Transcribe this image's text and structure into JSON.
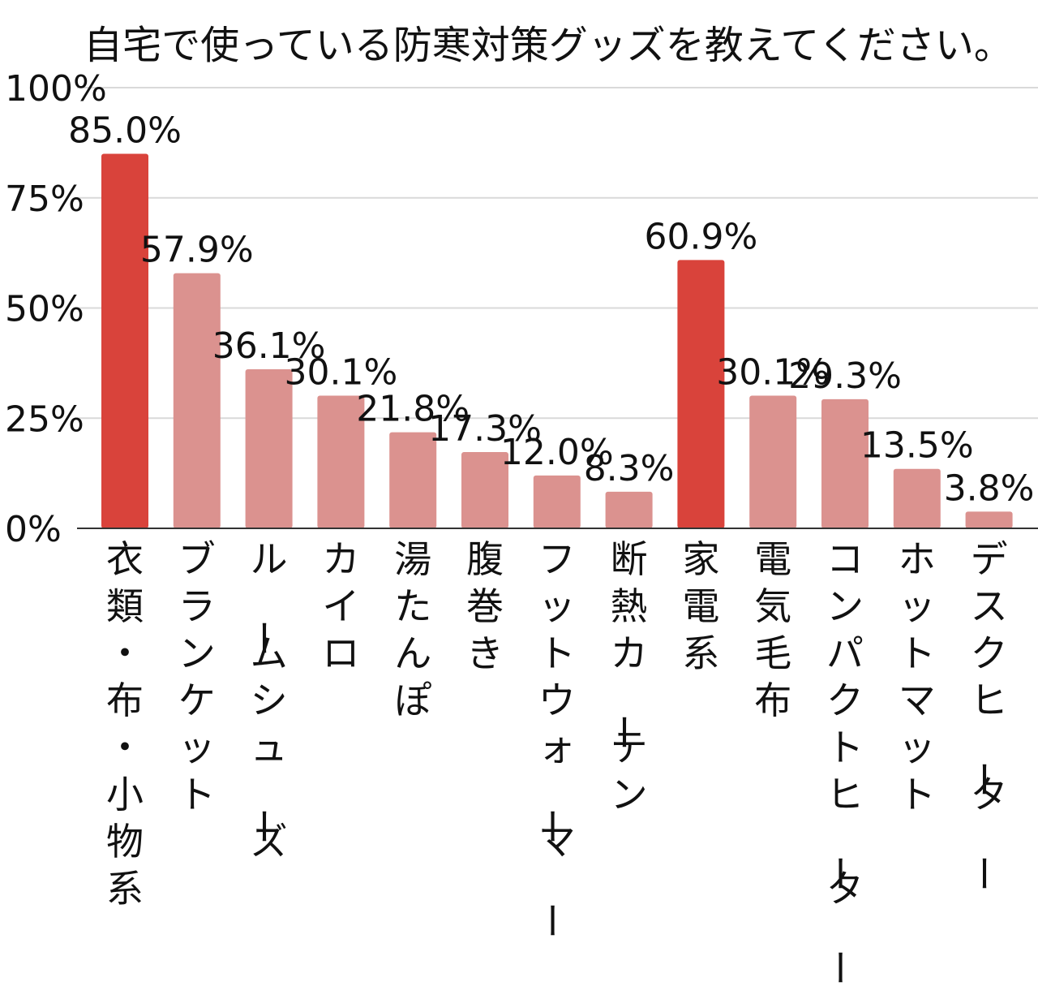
{
  "chart_data": {
    "type": "bar",
    "title": "自宅で使っている防寒対策グッズを教えてください。",
    "xlabel": "",
    "ylabel": "",
    "ylim": [
      0,
      100
    ],
    "yticks": [
      {
        "value": 0,
        "label": "0%"
      },
      {
        "value": 25,
        "label": "25%"
      },
      {
        "value": 50,
        "label": "50%"
      },
      {
        "value": 75,
        "label": "75%"
      },
      {
        "value": 100,
        "label": "100%"
      }
    ],
    "grid": true,
    "legend": "none",
    "categories": [
      "衣類・布・小物系",
      "ブランケット",
      "ルームシューズ",
      "カイロ",
      "湯たんぽ",
      "腹巻き",
      "フットウォーマー",
      "断熱カーテン",
      "家電系",
      "電気毛布",
      "コンパクトヒーター",
      "ホットマット",
      "デスクヒーター"
    ],
    "values": [
      85.0,
      57.9,
      36.1,
      30.1,
      21.8,
      17.3,
      12.0,
      8.3,
      60.9,
      30.1,
      29.3,
      13.5,
      3.8
    ],
    "value_labels": [
      "85.0%",
      "57.9%",
      "36.1%",
      "30.1%",
      "21.8%",
      "17.3%",
      "12.0%",
      "8.3%",
      "60.9%",
      "30.1%",
      "29.3%",
      "13.5%",
      "3.8%"
    ],
    "highlight": [
      true,
      false,
      false,
      false,
      false,
      false,
      false,
      false,
      true,
      false,
      false,
      false,
      false
    ],
    "colors": {
      "highlight": "#d9433b",
      "normal": "#db928f",
      "grid": "#d9d9d9",
      "axis": "#333333"
    }
  }
}
